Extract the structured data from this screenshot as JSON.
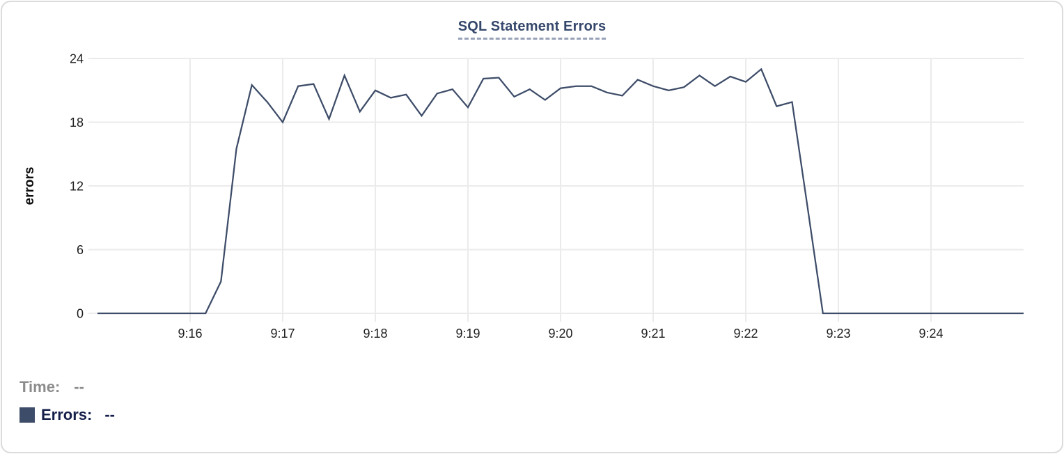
{
  "chart_data": {
    "type": "line",
    "title": "SQL Statement Errors",
    "xlabel": "",
    "ylabel": "errors",
    "y_ticks": [
      0,
      6,
      12,
      18,
      24
    ],
    "ylim": [
      0,
      24
    ],
    "x_ticks": [
      "9:16",
      "9:17",
      "9:18",
      "9:19",
      "9:20",
      "9:21",
      "9:22",
      "9:23",
      "9:24"
    ],
    "x_range_labels": [
      "9:15",
      "9:25"
    ],
    "sample_interval_seconds": 10,
    "grid": true,
    "grid_color": "#ebebeb",
    "legend_position": "bottom-left",
    "series": [
      {
        "name": "Errors",
        "color": "#3d4c68",
        "values": [
          0,
          0,
          0,
          0,
          0,
          0,
          0,
          0,
          3,
          15.5,
          21.5,
          19.9,
          18,
          21.4,
          21.6,
          18.3,
          22.4,
          19,
          21,
          20.3,
          20.6,
          18.6,
          20.7,
          21.1,
          19.4,
          22.1,
          22.2,
          20.4,
          21.1,
          20.1,
          21.2,
          21.4,
          21.4,
          20.8,
          20.5,
          22,
          21.4,
          21,
          21.3,
          22.4,
          21.4,
          22.3,
          21.8,
          23,
          19.5,
          19.9,
          10,
          0,
          0,
          0,
          0,
          0,
          0,
          0,
          0,
          0,
          0,
          0,
          0,
          0,
          0
        ]
      }
    ]
  },
  "tooltip": {
    "time_label": "Time:",
    "time_value": "--",
    "errors_label": "Errors:",
    "errors_value": "--"
  }
}
